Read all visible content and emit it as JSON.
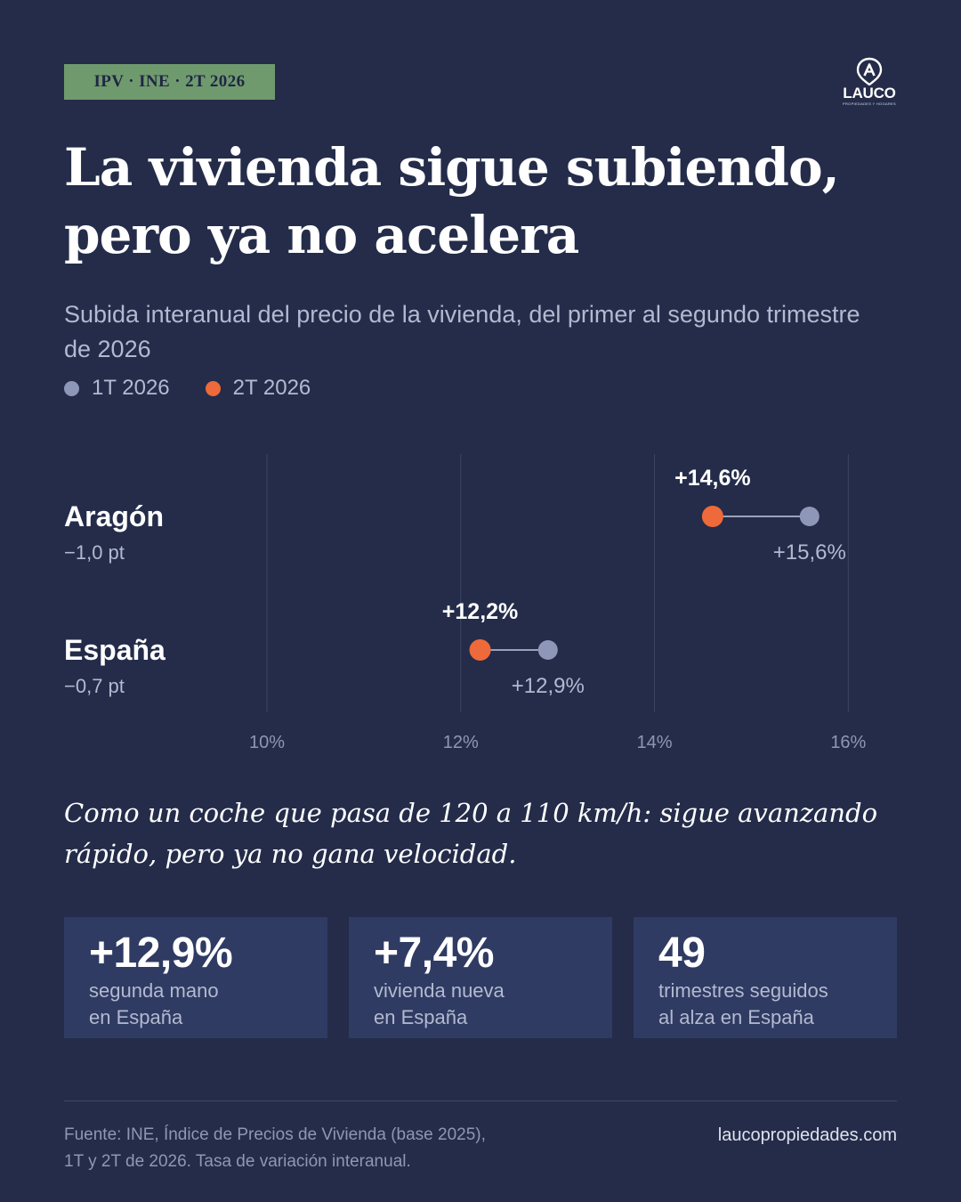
{
  "tag": "IPV · INE · 2T 2026",
  "logo": {
    "word": "LAUCO",
    "sub": "PROPIEDADES Y HOGARES"
  },
  "title_line1": "La vivienda sigue subiendo,",
  "title_line2": "pero ya no acelera",
  "subtitle": "Subida interanual del precio de la vivienda, del primer al segundo trimestre de 2026",
  "colors": {
    "background": "#242c4a",
    "q1": "#8e97b8",
    "q2": "#ee6a3a",
    "tag_bg": "#6f9a6e",
    "card_bg": "#2f3b63"
  },
  "chart_data": {
    "type": "dumbbell",
    "series": [
      {
        "name": "1T 2026",
        "color": "#8e97b8"
      },
      {
        "name": "2T 2026",
        "color": "#ee6a3a"
      }
    ],
    "xlim": [
      10,
      16.75
    ],
    "xticks": [
      10,
      12,
      14,
      16
    ],
    "tick_labels": [
      "10%",
      "12%",
      "14%",
      "16%"
    ],
    "grid": true,
    "rows": [
      {
        "name": "Aragón",
        "delta": "−1,0 pt",
        "q1": 15.6,
        "q2": 14.6,
        "q1_label": "+15,6%",
        "q2_label": "+14,6%"
      },
      {
        "name": "España",
        "delta": "−0,7 pt",
        "q1": 12.9,
        "q2": 12.2,
        "q1_label": "+12,9%",
        "q2_label": "+12,2%"
      }
    ]
  },
  "quote_line1": "Como un coche que pasa de 120 a 110 km/h: sigue avanzando",
  "quote_line2": "rápido, pero ya no gana velocidad.",
  "cards": [
    {
      "value": "+12,9%",
      "line1": "segunda mano",
      "line2": "en España"
    },
    {
      "value": "+7,4%",
      "line1": "vivienda nueva",
      "line2": "en España"
    },
    {
      "value": "49",
      "line1": "trimestres seguidos",
      "line2": "al alza en España"
    }
  ],
  "footer": {
    "source_line1": "Fuente: INE, Índice de Precios de Vivienda (base 2025),",
    "source_line2": "1T y 2T de 2026. Tasa de variación interanual.",
    "website": "laucopropiedades.com"
  }
}
